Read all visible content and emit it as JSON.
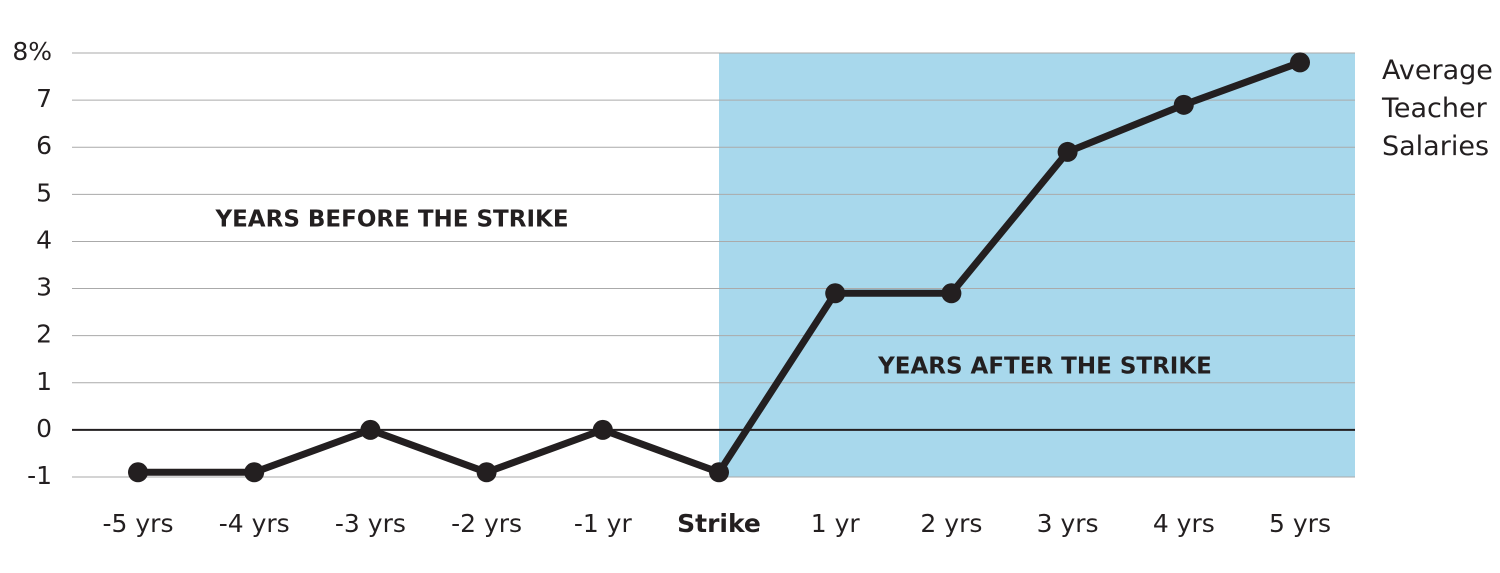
{
  "chart_data": {
    "type": "line",
    "categories": [
      "-5 yrs",
      "-4 yrs",
      "-3 yrs",
      "-2 yrs",
      "-1 yr",
      "Strike",
      "1 yr",
      "2 yrs",
      "3 yrs",
      "4 yrs",
      "5 yrs"
    ],
    "series": [
      {
        "name": "Average Teacher Salaries",
        "color": "#231f20",
        "values": [
          -0.9,
          -0.9,
          0,
          -0.9,
          0,
          -0.9,
          2.9,
          2.9,
          5.9,
          6.9,
          7.8
        ]
      }
    ],
    "ylim": [
      -1,
      8
    ],
    "yticks": [
      -1,
      0,
      1,
      2,
      3,
      4,
      5,
      6,
      7,
      {
        "value": 8,
        "label": "8%"
      }
    ],
    "grid": true,
    "highlight_from": "Strike",
    "highlight_color": "#a8d8ec",
    "annotations": [
      "YEARS BEFORE THE STRIKE",
      "YEARS AFTER THE STRIKE"
    ]
  }
}
